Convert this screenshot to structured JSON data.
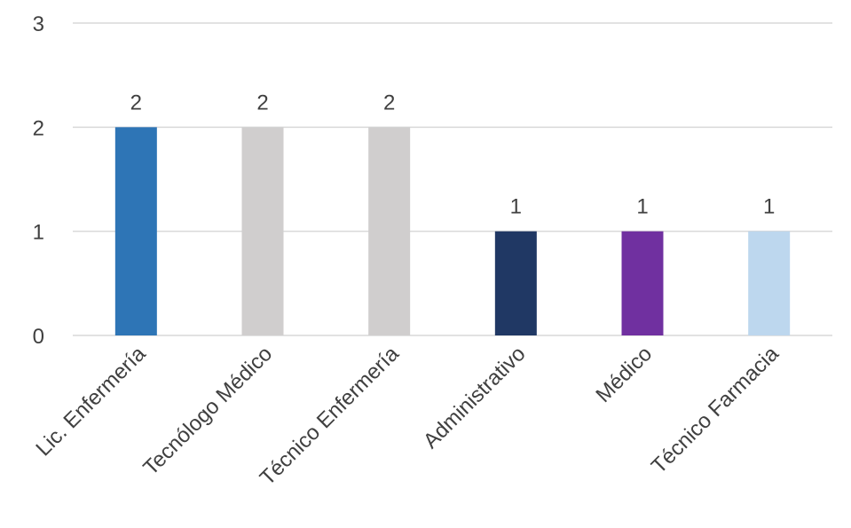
{
  "chart_data": {
    "type": "bar",
    "categories": [
      "Lic. Enfermería",
      "Tecnólogo Médico",
      "Técnico Enfermería",
      "Administrativo",
      "Médico",
      "Técnico Farmacia"
    ],
    "values": [
      2,
      2,
      2,
      1,
      1,
      1
    ],
    "data_labels": [
      "2",
      "2",
      "2",
      "1",
      "1",
      "1"
    ],
    "bar_colors": [
      "#2e75b6",
      "#d0cece",
      "#d0cece",
      "#203864",
      "#7030a0",
      "#bdd7ee"
    ],
    "ylim": [
      0,
      3
    ],
    "yticks": [
      0,
      1,
      2,
      3
    ],
    "ytick_labels": [
      "0",
      "1",
      "2",
      "3"
    ],
    "grid": true,
    "gridline_color": "#d9d9d9",
    "legend": "none"
  }
}
